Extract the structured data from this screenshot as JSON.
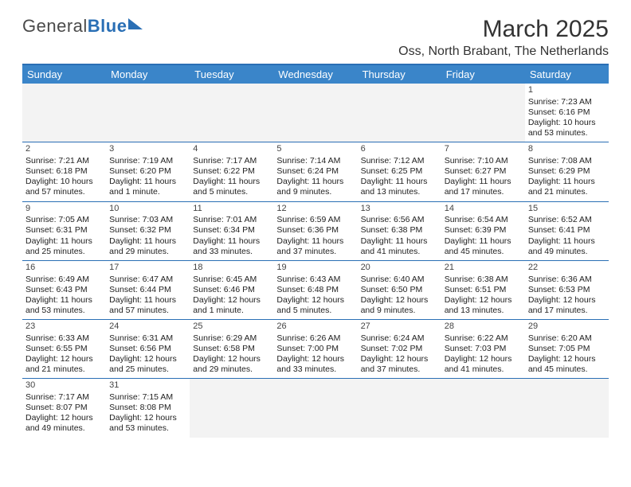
{
  "logo": {
    "general": "General",
    "blue": "Blue"
  },
  "title": "March 2025",
  "subtitle": "Oss, North Brabant, The Netherlands",
  "colors": {
    "header_bg": "#3a85c9",
    "accent": "#2a6fb5",
    "empty_bg": "#f3f3f3",
    "text": "#222222",
    "page_bg": "#ffffff"
  },
  "day_headers": [
    "Sunday",
    "Monday",
    "Tuesday",
    "Wednesday",
    "Thursday",
    "Friday",
    "Saturday"
  ],
  "weeks": [
    [
      null,
      null,
      null,
      null,
      null,
      null,
      {
        "n": "1",
        "sr": "Sunrise: 7:23 AM",
        "ss": "Sunset: 6:16 PM",
        "dl": "Daylight: 10 hours and 53 minutes."
      }
    ],
    [
      {
        "n": "2",
        "sr": "Sunrise: 7:21 AM",
        "ss": "Sunset: 6:18 PM",
        "dl": "Daylight: 10 hours and 57 minutes."
      },
      {
        "n": "3",
        "sr": "Sunrise: 7:19 AM",
        "ss": "Sunset: 6:20 PM",
        "dl": "Daylight: 11 hours and 1 minute."
      },
      {
        "n": "4",
        "sr": "Sunrise: 7:17 AM",
        "ss": "Sunset: 6:22 PM",
        "dl": "Daylight: 11 hours and 5 minutes."
      },
      {
        "n": "5",
        "sr": "Sunrise: 7:14 AM",
        "ss": "Sunset: 6:24 PM",
        "dl": "Daylight: 11 hours and 9 minutes."
      },
      {
        "n": "6",
        "sr": "Sunrise: 7:12 AM",
        "ss": "Sunset: 6:25 PM",
        "dl": "Daylight: 11 hours and 13 minutes."
      },
      {
        "n": "7",
        "sr": "Sunrise: 7:10 AM",
        "ss": "Sunset: 6:27 PM",
        "dl": "Daylight: 11 hours and 17 minutes."
      },
      {
        "n": "8",
        "sr": "Sunrise: 7:08 AM",
        "ss": "Sunset: 6:29 PM",
        "dl": "Daylight: 11 hours and 21 minutes."
      }
    ],
    [
      {
        "n": "9",
        "sr": "Sunrise: 7:05 AM",
        "ss": "Sunset: 6:31 PM",
        "dl": "Daylight: 11 hours and 25 minutes."
      },
      {
        "n": "10",
        "sr": "Sunrise: 7:03 AM",
        "ss": "Sunset: 6:32 PM",
        "dl": "Daylight: 11 hours and 29 minutes."
      },
      {
        "n": "11",
        "sr": "Sunrise: 7:01 AM",
        "ss": "Sunset: 6:34 PM",
        "dl": "Daylight: 11 hours and 33 minutes."
      },
      {
        "n": "12",
        "sr": "Sunrise: 6:59 AM",
        "ss": "Sunset: 6:36 PM",
        "dl": "Daylight: 11 hours and 37 minutes."
      },
      {
        "n": "13",
        "sr": "Sunrise: 6:56 AM",
        "ss": "Sunset: 6:38 PM",
        "dl": "Daylight: 11 hours and 41 minutes."
      },
      {
        "n": "14",
        "sr": "Sunrise: 6:54 AM",
        "ss": "Sunset: 6:39 PM",
        "dl": "Daylight: 11 hours and 45 minutes."
      },
      {
        "n": "15",
        "sr": "Sunrise: 6:52 AM",
        "ss": "Sunset: 6:41 PM",
        "dl": "Daylight: 11 hours and 49 minutes."
      }
    ],
    [
      {
        "n": "16",
        "sr": "Sunrise: 6:49 AM",
        "ss": "Sunset: 6:43 PM",
        "dl": "Daylight: 11 hours and 53 minutes."
      },
      {
        "n": "17",
        "sr": "Sunrise: 6:47 AM",
        "ss": "Sunset: 6:44 PM",
        "dl": "Daylight: 11 hours and 57 minutes."
      },
      {
        "n": "18",
        "sr": "Sunrise: 6:45 AM",
        "ss": "Sunset: 6:46 PM",
        "dl": "Daylight: 12 hours and 1 minute."
      },
      {
        "n": "19",
        "sr": "Sunrise: 6:43 AM",
        "ss": "Sunset: 6:48 PM",
        "dl": "Daylight: 12 hours and 5 minutes."
      },
      {
        "n": "20",
        "sr": "Sunrise: 6:40 AM",
        "ss": "Sunset: 6:50 PM",
        "dl": "Daylight: 12 hours and 9 minutes."
      },
      {
        "n": "21",
        "sr": "Sunrise: 6:38 AM",
        "ss": "Sunset: 6:51 PM",
        "dl": "Daylight: 12 hours and 13 minutes."
      },
      {
        "n": "22",
        "sr": "Sunrise: 6:36 AM",
        "ss": "Sunset: 6:53 PM",
        "dl": "Daylight: 12 hours and 17 minutes."
      }
    ],
    [
      {
        "n": "23",
        "sr": "Sunrise: 6:33 AM",
        "ss": "Sunset: 6:55 PM",
        "dl": "Daylight: 12 hours and 21 minutes."
      },
      {
        "n": "24",
        "sr": "Sunrise: 6:31 AM",
        "ss": "Sunset: 6:56 PM",
        "dl": "Daylight: 12 hours and 25 minutes."
      },
      {
        "n": "25",
        "sr": "Sunrise: 6:29 AM",
        "ss": "Sunset: 6:58 PM",
        "dl": "Daylight: 12 hours and 29 minutes."
      },
      {
        "n": "26",
        "sr": "Sunrise: 6:26 AM",
        "ss": "Sunset: 7:00 PM",
        "dl": "Daylight: 12 hours and 33 minutes."
      },
      {
        "n": "27",
        "sr": "Sunrise: 6:24 AM",
        "ss": "Sunset: 7:02 PM",
        "dl": "Daylight: 12 hours and 37 minutes."
      },
      {
        "n": "28",
        "sr": "Sunrise: 6:22 AM",
        "ss": "Sunset: 7:03 PM",
        "dl": "Daylight: 12 hours and 41 minutes."
      },
      {
        "n": "29",
        "sr": "Sunrise: 6:20 AM",
        "ss": "Sunset: 7:05 PM",
        "dl": "Daylight: 12 hours and 45 minutes."
      }
    ],
    [
      {
        "n": "30",
        "sr": "Sunrise: 7:17 AM",
        "ss": "Sunset: 8:07 PM",
        "dl": "Daylight: 12 hours and 49 minutes."
      },
      {
        "n": "31",
        "sr": "Sunrise: 7:15 AM",
        "ss": "Sunset: 8:08 PM",
        "dl": "Daylight: 12 hours and 53 minutes."
      },
      null,
      null,
      null,
      null,
      null
    ]
  ]
}
